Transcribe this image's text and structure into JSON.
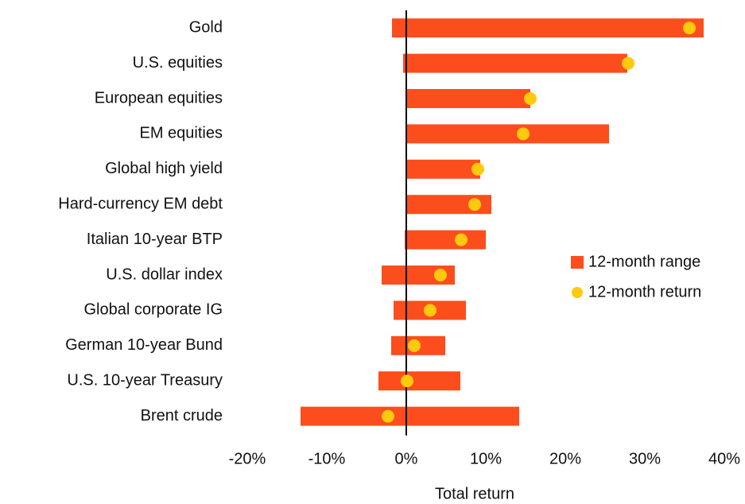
{
  "chart_data": {
    "type": "range-bar",
    "categories": [
      "Gold",
      "U.S. equities",
      "European equities",
      "EM equities",
      "Global high yield",
      "Hard-currency EM debt",
      "Italian 10-year BTP",
      "U.S. dollar index",
      "Global corporate IG",
      "German 10-year Bund",
      "U.S. 10-year Treasury",
      "Brent crude"
    ],
    "series": [
      {
        "name": "12-month range",
        "color": "#fc4e1c",
        "values": [
          [
            -1.8,
            37.4
          ],
          [
            -0.4,
            27.8
          ],
          [
            0,
            15.6
          ],
          [
            0,
            25.5
          ],
          [
            0,
            9.3
          ],
          [
            0,
            10.7
          ],
          [
            -0.2,
            10.0
          ],
          [
            -3.1,
            6.1
          ],
          [
            -1.6,
            7.5
          ],
          [
            -1.9,
            4.9
          ],
          [
            -3.5,
            6.8
          ],
          [
            -13.3,
            14.2
          ]
        ]
      },
      {
        "name": "12-month return",
        "color": "#ffc90e",
        "values": [
          35.6,
          27.9,
          15.6,
          14.7,
          9.0,
          8.6,
          6.9,
          4.3,
          3.0,
          1.0,
          0.1,
          -2.3
        ]
      }
    ],
    "xlabel": "Total return",
    "xlim": [
      -20,
      40
    ],
    "xticks": [
      {
        "value": -20,
        "label": "-20%"
      },
      {
        "value": -10,
        "label": "-10%"
      },
      {
        "value": 0,
        "label": "0%"
      },
      {
        "value": 10,
        "label": "10%"
      },
      {
        "value": 20,
        "label": "20%"
      },
      {
        "value": 30,
        "label": "30%"
      },
      {
        "value": 40,
        "label": "40%"
      }
    ],
    "grid": false,
    "legend": "right"
  }
}
